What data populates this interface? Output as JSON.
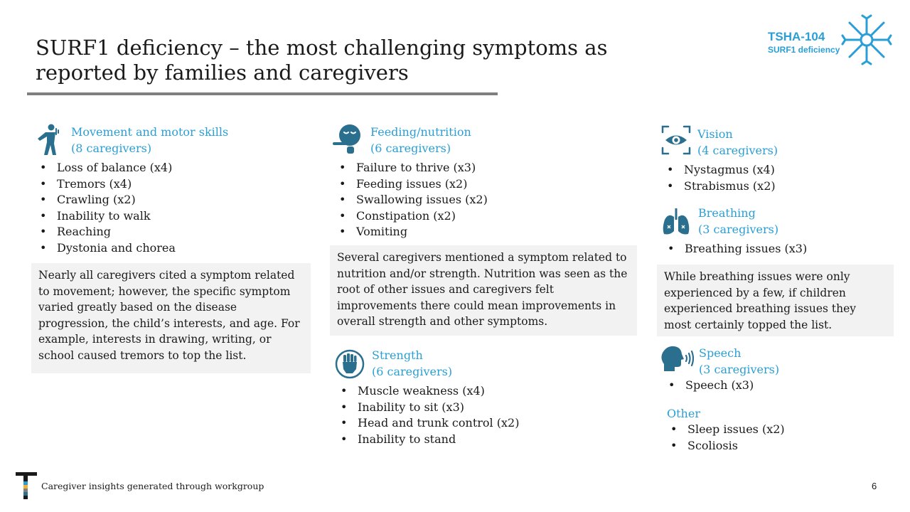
{
  "title": "SURF1 deficiency – the most challenging symptoms as reported by families and caregivers",
  "logo": {
    "code": "TSHA-104",
    "subtitle": "SURF1 deficiency"
  },
  "sections": {
    "movement": {
      "heading": "Movement and motor skills",
      "count": "(8 caregivers)",
      "items": [
        "Loss of balance (x4)",
        "Tremors (x4)",
        "Crawling (x2)",
        "Inability to walk",
        "Reaching",
        "Dystonia and chorea"
      ],
      "note": "Nearly all caregivers cited a symptom related to movement; however, the specific symptom varied greatly based on the disease progression, the child’s interests, and age. For example, interests in drawing, writing, or school caused tremors to top the list."
    },
    "feeding": {
      "heading": "Feeding/nutrition",
      "count": "(6 caregivers)",
      "items": [
        "Failure to thrive (x3)",
        "Feeding issues (x2)",
        "Swallowing issues (x2)",
        "Constipation (x2)",
        "Vomiting"
      ],
      "note": "Several caregivers mentioned a symptom related to nutrition and/or strength. Nutrition was seen as the root of other issues and caregivers felt improvements there could mean improvements in overall strength and other symptoms."
    },
    "strength": {
      "heading": "Strength",
      "count": "(6 caregivers)",
      "items": [
        "Muscle weakness (x4)",
        "Inability to sit (x3)",
        "Head and trunk control (x2)",
        "Inability to stand"
      ]
    },
    "vision": {
      "heading": "Vision",
      "count": "(4 caregivers)",
      "items": [
        "Nystagmus (x4)",
        "Strabismus (x2)"
      ]
    },
    "breathing": {
      "heading": "Breathing",
      "count": "(3 caregivers)",
      "items": [
        "Breathing issues (x3)"
      ],
      "note": "While breathing issues were only experienced by a few, if children experienced breathing issues they most certainly topped the list."
    },
    "speech": {
      "heading": "Speech",
      "count": "(3 caregivers)",
      "items": [
        "Speech (x3)"
      ]
    },
    "other": {
      "heading": "Other",
      "items": [
        "Sleep issues (x2)",
        "Scoliosis"
      ]
    }
  },
  "footer": {
    "text": "Caregiver insights generated through workgroup",
    "page": "6"
  },
  "colors": {
    "accent": "#2a9fd6",
    "icon": "#2b6f8f",
    "note_bg": "#f2f2f2",
    "rule": "#7f7f7f"
  }
}
